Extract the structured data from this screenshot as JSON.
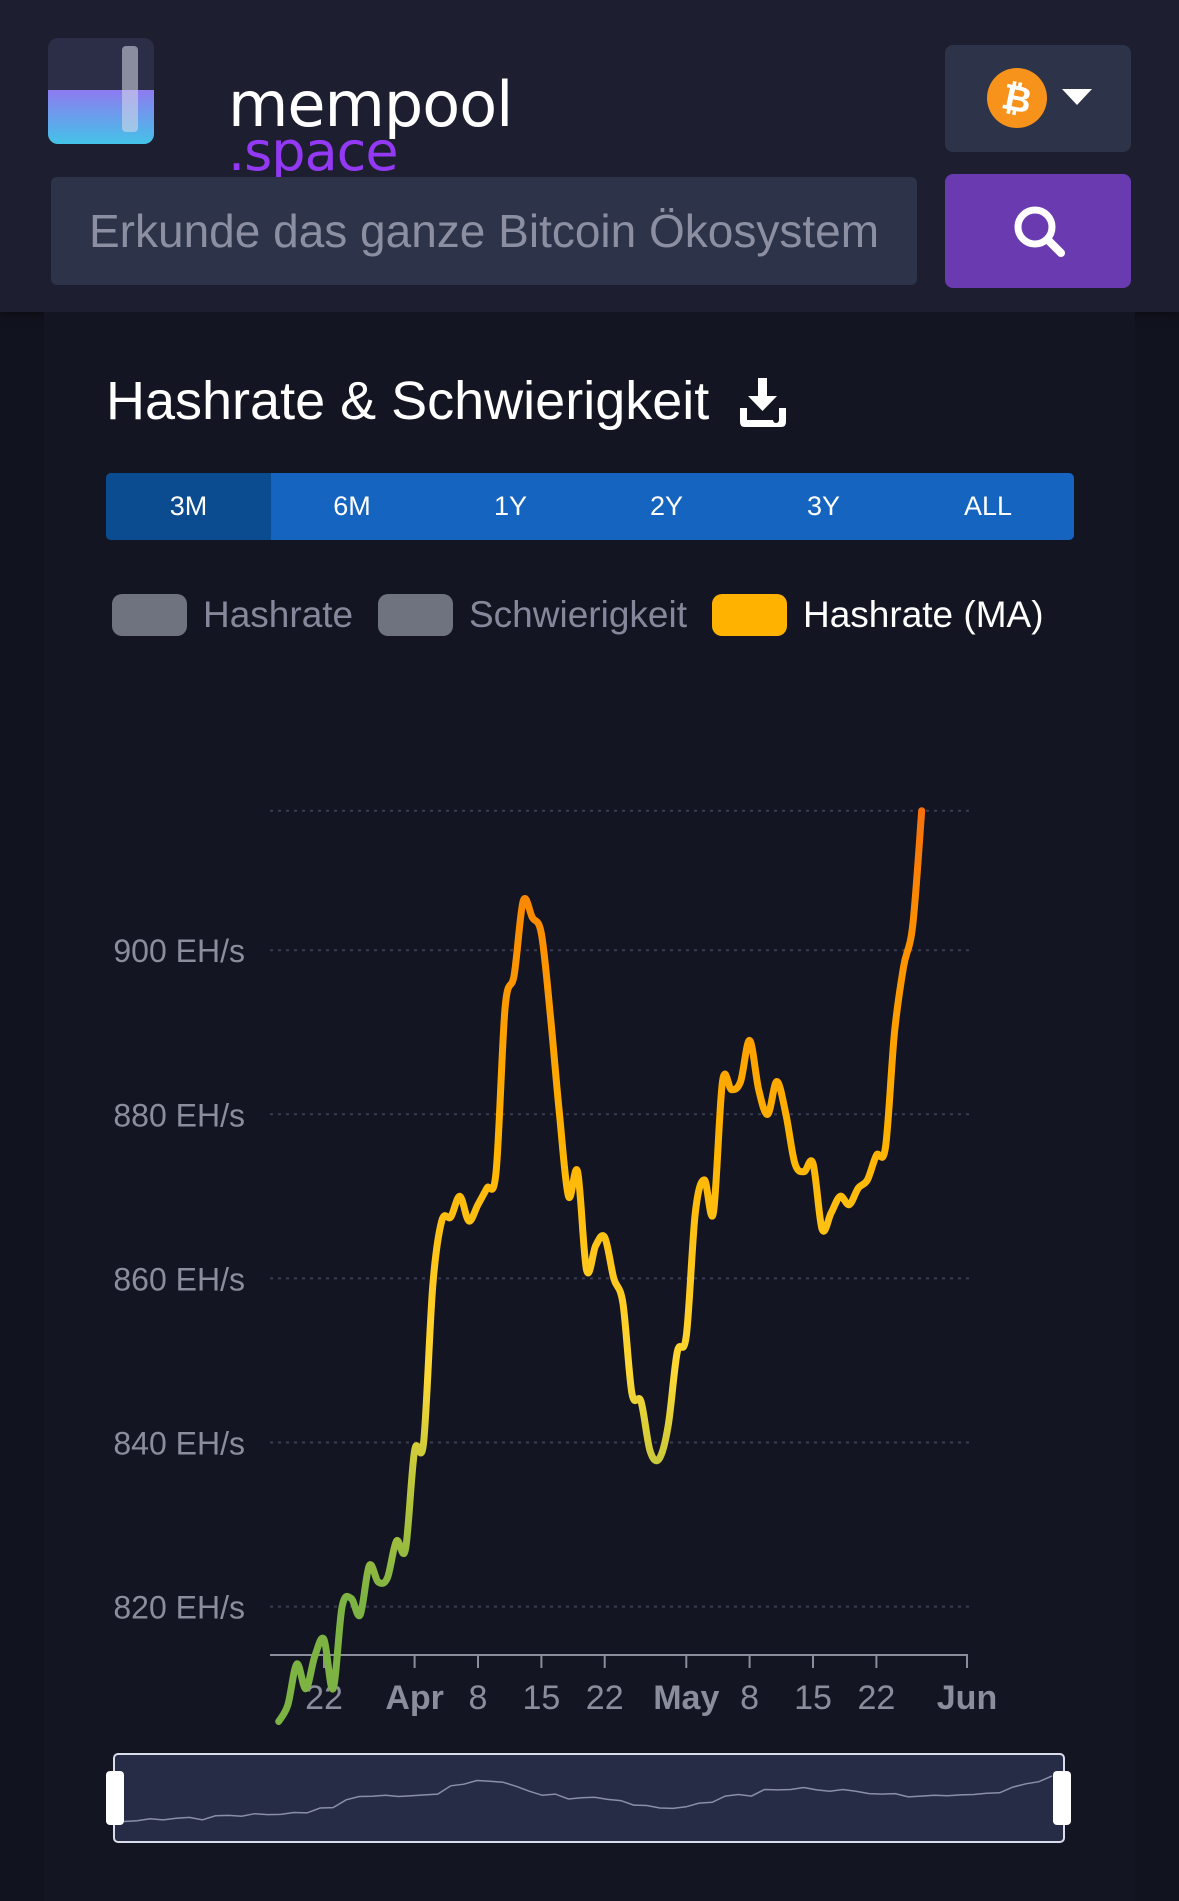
{
  "brand": {
    "name_line1": "mempool",
    "name_line2": ".space"
  },
  "colors": {
    "header_bg": "#1d1f31",
    "accent_purple": "#9339f4",
    "search_button": "#6a3bb0",
    "tab_bar": "#1565c0",
    "tab_active": "#0b4b8f",
    "bitcoin_orange": "#f7931a"
  },
  "network": {
    "icon": "bitcoin-icon",
    "selected": "bitcoin"
  },
  "search": {
    "placeholder": "Erkunde das ganze Bitcoin Ökosystem"
  },
  "page": {
    "title": "Hashrate & Schwierigkeit"
  },
  "tabs": [
    {
      "label": "3M",
      "active": true
    },
    {
      "label": "6M",
      "active": false
    },
    {
      "label": "1Y",
      "active": false
    },
    {
      "label": "2Y",
      "active": false
    },
    {
      "label": "3Y",
      "active": false
    },
    {
      "label": "ALL",
      "active": false
    }
  ],
  "legend": [
    {
      "label": "Hashrate",
      "enabled": false,
      "color": "#6f727f"
    },
    {
      "label": "Schwierigkeit",
      "enabled": false,
      "color": "#6f727f"
    },
    {
      "label": "Hashrate (MA)",
      "enabled": true,
      "color": "#ffb300"
    }
  ],
  "chart_data": {
    "type": "line",
    "y_unit": "EH/s",
    "ylim": [
      800,
      917
    ],
    "y_ticks": [
      820,
      840,
      860,
      880,
      900
    ],
    "y_tick_labels": [
      "820 EH/s",
      "840 EH/s",
      "860 EH/s",
      "880 EH/s",
      "900 EH/s"
    ],
    "x_start": "2024-03-17",
    "x_end": "2024-06-01",
    "x_ticks": [
      {
        "date": "2024-03-22",
        "label": "22",
        "bold": false
      },
      {
        "date": "2024-04-01",
        "label": "Apr",
        "bold": true
      },
      {
        "date": "2024-04-08",
        "label": "8",
        "bold": false
      },
      {
        "date": "2024-04-15",
        "label": "15",
        "bold": false
      },
      {
        "date": "2024-04-22",
        "label": "22",
        "bold": false
      },
      {
        "date": "2024-05-01",
        "label": "May",
        "bold": true
      },
      {
        "date": "2024-05-08",
        "label": "8",
        "bold": false
      },
      {
        "date": "2024-05-15",
        "label": "15",
        "bold": false
      },
      {
        "date": "2024-05-22",
        "label": "22",
        "bold": false
      },
      {
        "date": "2024-06-01",
        "label": "Jun",
        "bold": true
      }
    ],
    "grid": true,
    "color_scale": [
      "#7cb342",
      "#fdd835",
      "#ffb300",
      "#fb8c00",
      "#f4511e"
    ],
    "series": [
      {
        "name": "Hashrate (MA)",
        "points": [
          [
            "2024-03-17",
            806.0
          ],
          [
            "2024-03-18",
            808.0
          ],
          [
            "2024-03-19",
            813.0
          ],
          [
            "2024-03-20",
            810.0
          ],
          [
            "2024-03-21",
            814.0
          ],
          [
            "2024-03-22",
            816.0
          ],
          [
            "2024-03-23",
            810.0
          ],
          [
            "2024-03-24",
            820.0
          ],
          [
            "2024-03-25",
            821.0
          ],
          [
            "2024-03-26",
            819.0
          ],
          [
            "2024-03-27",
            825.0
          ],
          [
            "2024-03-28",
            823.0
          ],
          [
            "2024-03-29",
            823.5
          ],
          [
            "2024-03-30",
            828.0
          ],
          [
            "2024-03-31",
            827.0
          ],
          [
            "2024-04-01",
            839.0
          ],
          [
            "2024-04-02",
            840.0
          ],
          [
            "2024-04-03",
            859.0
          ],
          [
            "2024-04-04",
            867.0
          ],
          [
            "2024-04-05",
            867.5
          ],
          [
            "2024-04-06",
            870.0
          ],
          [
            "2024-04-07",
            867.0
          ],
          [
            "2024-04-08",
            869.0
          ],
          [
            "2024-04-09",
            871.0
          ],
          [
            "2024-04-10",
            873.0
          ],
          [
            "2024-04-11",
            893.0
          ],
          [
            "2024-04-12",
            897.0
          ],
          [
            "2024-04-13",
            906.0
          ],
          [
            "2024-04-14",
            904.0
          ],
          [
            "2024-04-15",
            902.0
          ],
          [
            "2024-04-16",
            892.0
          ],
          [
            "2024-04-17",
            880.0
          ],
          [
            "2024-04-18",
            870.0
          ],
          [
            "2024-04-19",
            873.0
          ],
          [
            "2024-04-20",
            861.0
          ],
          [
            "2024-04-21",
            864.0
          ],
          [
            "2024-04-22",
            865.0
          ],
          [
            "2024-04-23",
            860.0
          ],
          [
            "2024-04-24",
            857.0
          ],
          [
            "2024-04-25",
            846.0
          ],
          [
            "2024-04-26",
            845.0
          ],
          [
            "2024-04-27",
            839.0
          ],
          [
            "2024-04-28",
            838.0
          ],
          [
            "2024-04-29",
            842.0
          ],
          [
            "2024-04-30",
            851.0
          ],
          [
            "2024-05-01",
            853.0
          ],
          [
            "2024-05-02",
            868.0
          ],
          [
            "2024-05-03",
            872.0
          ],
          [
            "2024-05-04",
            868.0
          ],
          [
            "2024-05-05",
            884.0
          ],
          [
            "2024-05-06",
            883.0
          ],
          [
            "2024-05-07",
            884.0
          ],
          [
            "2024-05-08",
            889.0
          ],
          [
            "2024-05-09",
            883.0
          ],
          [
            "2024-05-10",
            880.0
          ],
          [
            "2024-05-11",
            884.0
          ],
          [
            "2024-05-12",
            880.0
          ],
          [
            "2024-05-13",
            874.0
          ],
          [
            "2024-05-14",
            873.0
          ],
          [
            "2024-05-15",
            874.0
          ],
          [
            "2024-05-16",
            866.0
          ],
          [
            "2024-05-17",
            868.0
          ],
          [
            "2024-05-18",
            870.0
          ],
          [
            "2024-05-19",
            869.0
          ],
          [
            "2024-05-20",
            871.0
          ],
          [
            "2024-05-21",
            872.0
          ],
          [
            "2024-05-22",
            875.0
          ],
          [
            "2024-05-23",
            876.0
          ],
          [
            "2024-05-24",
            890.0
          ],
          [
            "2024-05-25",
            898.0
          ],
          [
            "2024-05-26",
            903.0
          ],
          [
            "2024-05-27",
            917.0
          ]
        ]
      }
    ]
  }
}
